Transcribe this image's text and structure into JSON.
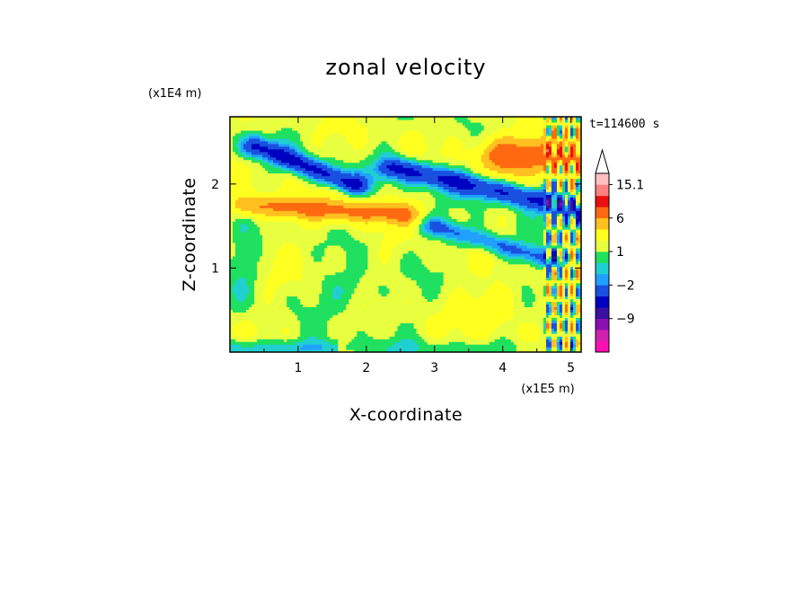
{
  "chart_data": {
    "type": "heatmap",
    "title": "zonal velocity",
    "xlabel": "X-coordinate",
    "ylabel": "Z-coordinate",
    "x_units": "(x1E5 m)",
    "y_units": "(x1E4 m)",
    "time_label": "t=114600 s",
    "xlim": [
      0,
      5.15
    ],
    "ylim": [
      0,
      2.8
    ],
    "x_ticks": [
      "1",
      "2",
      "3",
      "4",
      "5"
    ],
    "x_tick_values": [
      1,
      2,
      3,
      4,
      5
    ],
    "y_ticks": [
      "1",
      "2"
    ],
    "y_tick_values": [
      1,
      2
    ],
    "colorbar": {
      "labels": [
        "15.1",
        "6",
        "1",
        "-2",
        "-9"
      ],
      "label_values": [
        15.1,
        6,
        1,
        -2,
        -9
      ],
      "levels": [
        -15,
        -12,
        -9,
        -6,
        -4,
        -2,
        -1,
        0,
        1,
        2,
        4,
        6,
        9,
        12,
        15.1
      ],
      "colors": [
        "#ff10b0",
        "#d020b0",
        "#8a10b0",
        "#3a10a0",
        "#0000c0",
        "#1a50e0",
        "#20a0ff",
        "#20d0d0",
        "#20e060",
        "#e8ff40",
        "#ffff20",
        "#ffc020",
        "#ff6a10",
        "#e81010",
        "#ff8080",
        "#ffc0c0"
      ]
    },
    "features": [
      {
        "desc": "upper negative jet",
        "x": [
          0.4,
          1.8
        ],
        "z": [
          2.45,
          2.0
        ],
        "value": -6
      },
      {
        "desc": "descending negative jet",
        "x": [
          2.4,
          5.15
        ],
        "z": [
          2.2,
          1.7
        ],
        "value": -6
      },
      {
        "desc": "lower negative tongue",
        "x": [
          3.0,
          4.7
        ],
        "z": [
          1.5,
          1.1
        ],
        "value": -4
      },
      {
        "desc": "positive band",
        "x": [
          0.3,
          2.5
        ],
        "z": [
          1.75,
          1.65
        ],
        "value": 5
      },
      {
        "desc": "positive upper-right",
        "x": [
          4.0,
          5.15
        ],
        "z": [
          2.35,
          2.35
        ],
        "value": 6
      }
    ]
  }
}
